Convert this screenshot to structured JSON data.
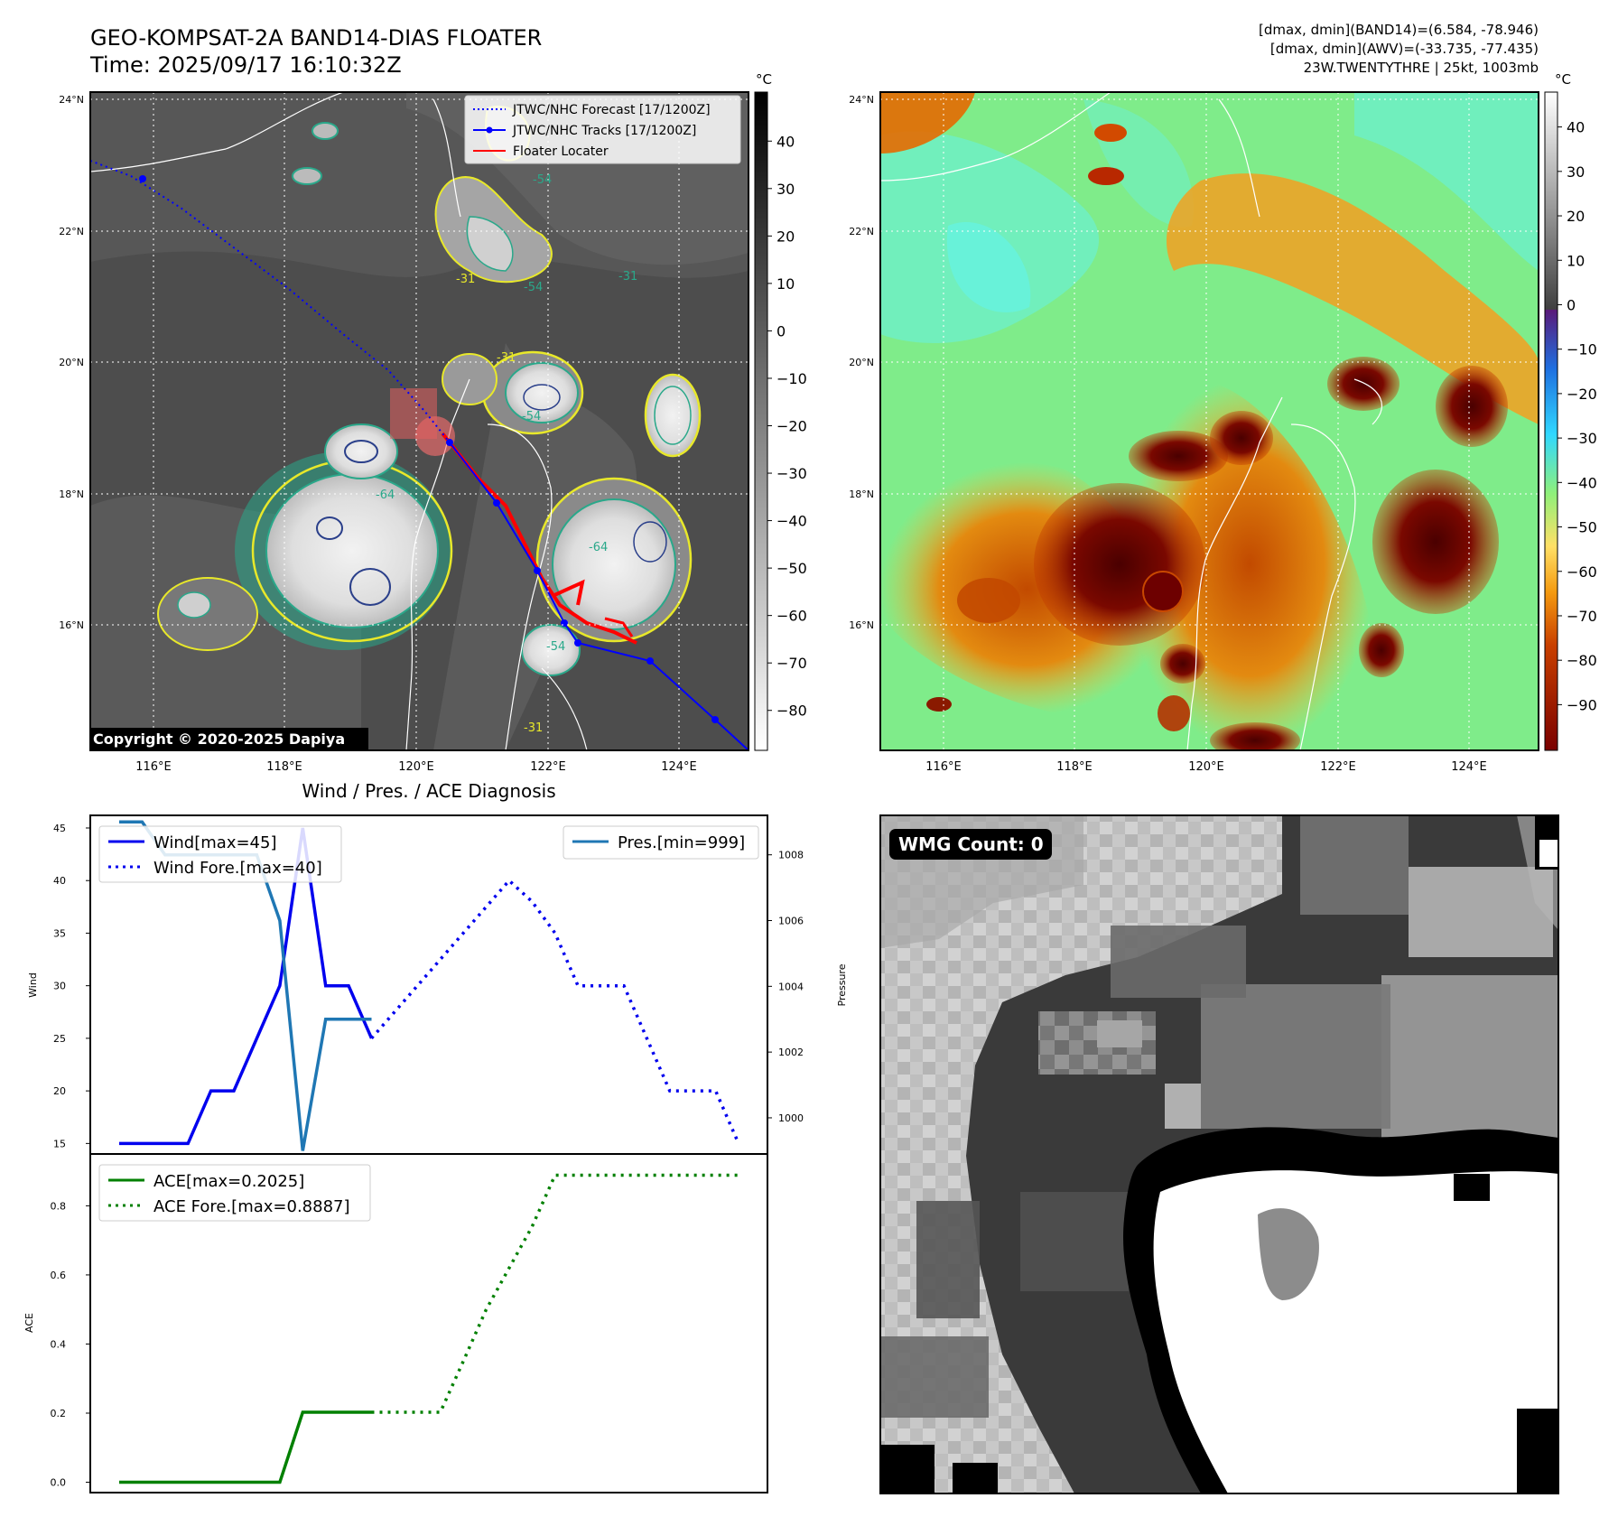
{
  "header": {
    "title_line1": "GEO-KOMPSAT-2A BAND14-DIAS FLOATER",
    "title_line2": "Time: 2025/09/17 16:10:32Z",
    "stats_line1": "[dmax, dmin](BAND14)=(6.584, -78.946)",
    "stats_line2": "[dmax, dmin](AWV)=(-33.735, -77.435)",
    "stats_line3": "23W.TWENTYTHRE | 25kt, 1003mb"
  },
  "map_axes": {
    "lon_labels": [
      "116°E",
      "118°E",
      "120°E",
      "122°E",
      "124°E"
    ],
    "lat_labels": [
      "16°N",
      "18°N",
      "20°N",
      "22°N",
      "24°N"
    ]
  },
  "left_map": {
    "legend": [
      "JTWC/NHC Forecast [17/1200Z]",
      "JTWC/NHC Tracks [17/1200Z]",
      "Floater Locater"
    ],
    "contour_labels": [
      "-54",
      "-54",
      "-31",
      "-31",
      "-54",
      "-64",
      "-64",
      "-31",
      "-31",
      "-54"
    ],
    "copyright": "Copyright © 2020-2025 Dapiya",
    "colors": {
      "forecast": "#0000ff",
      "track": "#0000ff",
      "locater": "#ff0000",
      "contour_31": "#e8e82a",
      "contour_54": "#2aa88a",
      "contour_64": "#2a3f8a"
    }
  },
  "left_colorbar": {
    "unit": "°C",
    "ticks": [
      "40",
      "30",
      "20",
      "10",
      "0",
      "−10",
      "−20",
      "−30",
      "−40",
      "−50",
      "−60",
      "−70",
      "−80"
    ]
  },
  "right_colorbar": {
    "unit": "°C",
    "ticks": [
      "40",
      "30",
      "20",
      "10",
      "0",
      "−10",
      "−20",
      "−30",
      "−40",
      "−50",
      "−60",
      "−70",
      "−80",
      "−90"
    ]
  },
  "wmg": {
    "label": "WMG Count: 0"
  },
  "chart_data": [
    {
      "type": "line",
      "title": "Wind / Pres. / ACE Diagnosis",
      "ylabel": "Wind",
      "y2label": "Pressure",
      "ylim": [
        14,
        46.2
      ],
      "y2lim": [
        998.9,
        1009.2
      ],
      "yticks": [
        15,
        20,
        25,
        30,
        35,
        40,
        45
      ],
      "y2ticks": [
        1000,
        1002,
        1004,
        1006,
        1008
      ],
      "legend_left": [
        "Wind[max=45]",
        "Wind Fore.[max=40]"
      ],
      "legend_right": [
        "Pres.[min=999]"
      ],
      "grid": false,
      "series": [
        {
          "name": "Wind[max=45]",
          "color": "#0000ee",
          "style": "solid",
          "axis": "left",
          "x": [
            0,
            1,
            2,
            3,
            4,
            5,
            6,
            7,
            8,
            9,
            10,
            11
          ],
          "y": [
            15,
            15,
            15,
            15,
            20,
            20,
            25,
            30,
            45,
            30,
            30,
            25
          ]
        },
        {
          "name": "Wind Fore.[max=40]",
          "color": "#0000ee",
          "style": "dotted",
          "axis": "left",
          "x": [
            11,
            12,
            13,
            14,
            15,
            16,
            17,
            18,
            19,
            20,
            21,
            22,
            23,
            24,
            25,
            26,
            27
          ],
          "y": [
            25,
            27.5,
            30,
            32.5,
            35,
            37.5,
            40,
            38,
            35,
            30,
            30,
            30,
            25,
            20,
            20,
            20,
            15
          ]
        },
        {
          "name": "Pres.[min=999]",
          "color": "#1f77b4",
          "style": "solid",
          "axis": "right",
          "x": [
            0,
            1,
            2,
            3,
            4,
            5,
            6,
            7,
            8,
            9,
            10,
            11
          ],
          "y": [
            1009,
            1009,
            1008,
            1008,
            1008,
            1008,
            1008,
            1006,
            999,
            1003,
            1003,
            1003
          ]
        }
      ]
    },
    {
      "type": "line",
      "ylabel": "ACE",
      "ylim": [
        -0.03,
        0.95
      ],
      "yticks": [
        0.0,
        0.2,
        0.4,
        0.6,
        0.8
      ],
      "legend": [
        "ACE[max=0.2025]",
        "ACE Fore.[max=0.8887]"
      ],
      "grid": false,
      "series": [
        {
          "name": "ACE[max=0.2025]",
          "color": "#008000",
          "style": "solid",
          "x": [
            0,
            1,
            2,
            3,
            4,
            5,
            6,
            7,
            8,
            9,
            10,
            11
          ],
          "y": [
            0,
            0,
            0,
            0,
            0,
            0,
            0,
            0,
            0.2025,
            0.2025,
            0.2025,
            0.2025
          ]
        },
        {
          "name": "ACE Fore.[max=0.8887]",
          "color": "#008000",
          "style": "dotted",
          "x": [
            11,
            12,
            13,
            14,
            15,
            16,
            17,
            18,
            19,
            20,
            21,
            22,
            23,
            24,
            25,
            26,
            27
          ],
          "y": [
            0.2025,
            0.2025,
            0.2025,
            0.2025,
            0.35,
            0.5,
            0.62,
            0.74,
            0.8887,
            0.8887,
            0.8887,
            0.8887,
            0.8887,
            0.8887,
            0.8887,
            0.8887,
            0.8887
          ]
        }
      ]
    }
  ]
}
